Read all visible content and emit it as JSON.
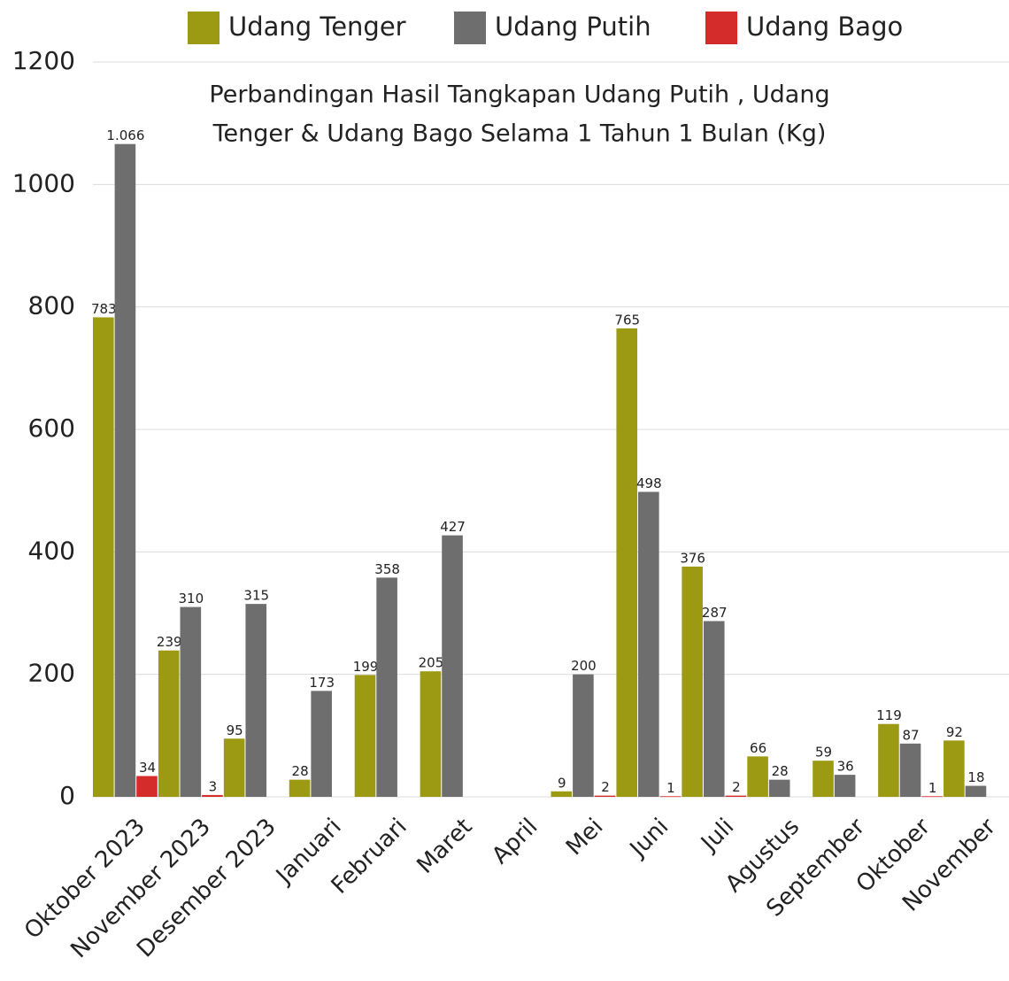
{
  "chart_data": {
    "type": "bar",
    "title": [
      "Perbandingan Hasil Tangkapan Udang Putih , Udang",
      "Tenger & Udang Bago Selama 1 Tahun 1 Bulan (Kg)"
    ],
    "categories": [
      "Oktober 2023",
      "November 2023",
      "Desember 2023",
      "Januari",
      "Februari",
      "Maret",
      "April",
      "Mei",
      "Juni",
      "Juli",
      "Agustus",
      "September",
      "Oktober",
      "November"
    ],
    "series": [
      {
        "name": "Udang Tenger",
        "color": "#9b9a12",
        "values": [
          783,
          239,
          95,
          28,
          199,
          205,
          null,
          9,
          765,
          376,
          66,
          59,
          119,
          92
        ]
      },
      {
        "name": "Udang Putih",
        "color": "#6e6e6e",
        "values": [
          1066,
          310,
          315,
          173,
          358,
          427,
          null,
          200,
          498,
          287,
          28,
          36,
          87,
          18
        ],
        "value_labels": [
          "1.066",
          "310",
          "315",
          "173",
          "358",
          "427",
          null,
          "200",
          "498",
          "287",
          "28",
          "36",
          "87",
          "18"
        ]
      },
      {
        "name": "Udang Bago",
        "color": "#d42b2b",
        "values": [
          34,
          3,
          null,
          null,
          null,
          null,
          null,
          2,
          1,
          2,
          null,
          null,
          1,
          null
        ]
      }
    ],
    "ylim": [
      0,
      1200
    ],
    "yticks": [
      0,
      200,
      400,
      600,
      800,
      1000,
      1200
    ],
    "grid": true,
    "legend": "top"
  }
}
